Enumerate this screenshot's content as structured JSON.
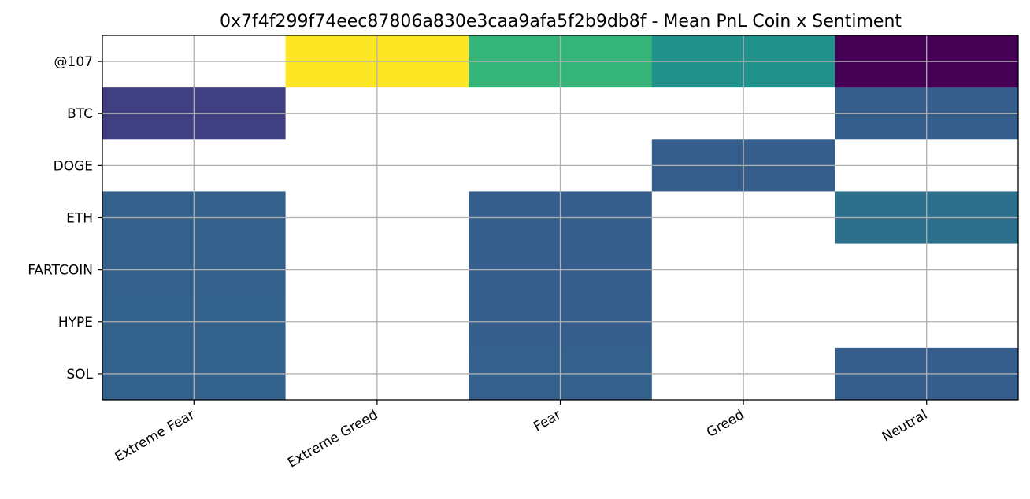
{
  "chart_data": {
    "type": "heatmap",
    "title": "0x7f4f299f74eec87806a830e3caa9afa5f2b9db8f - Mean PnL Coin x Sentiment",
    "x_categories": [
      "Extreme Fear",
      "Extreme Greed",
      "Fear",
      "Greed",
      "Neutral"
    ],
    "y_categories": [
      "@107",
      "BTC",
      "DOGE",
      "ETH",
      "FARTCOIN",
      "HYPE",
      "SOL"
    ],
    "colormap": "viridis",
    "missing_color": "#ffffff",
    "grid": true,
    "values": [
      [
        null,
        1.0,
        0.66,
        0.5,
        0.0
      ],
      [
        0.2,
        null,
        null,
        null,
        0.3
      ],
      [
        null,
        null,
        null,
        0.3,
        null
      ],
      [
        0.31,
        null,
        0.3,
        null,
        0.37
      ],
      [
        0.31,
        null,
        0.3,
        null,
        null
      ],
      [
        0.32,
        null,
        0.3,
        null,
        null
      ],
      [
        0.32,
        null,
        0.31,
        null,
        0.3
      ]
    ]
  }
}
